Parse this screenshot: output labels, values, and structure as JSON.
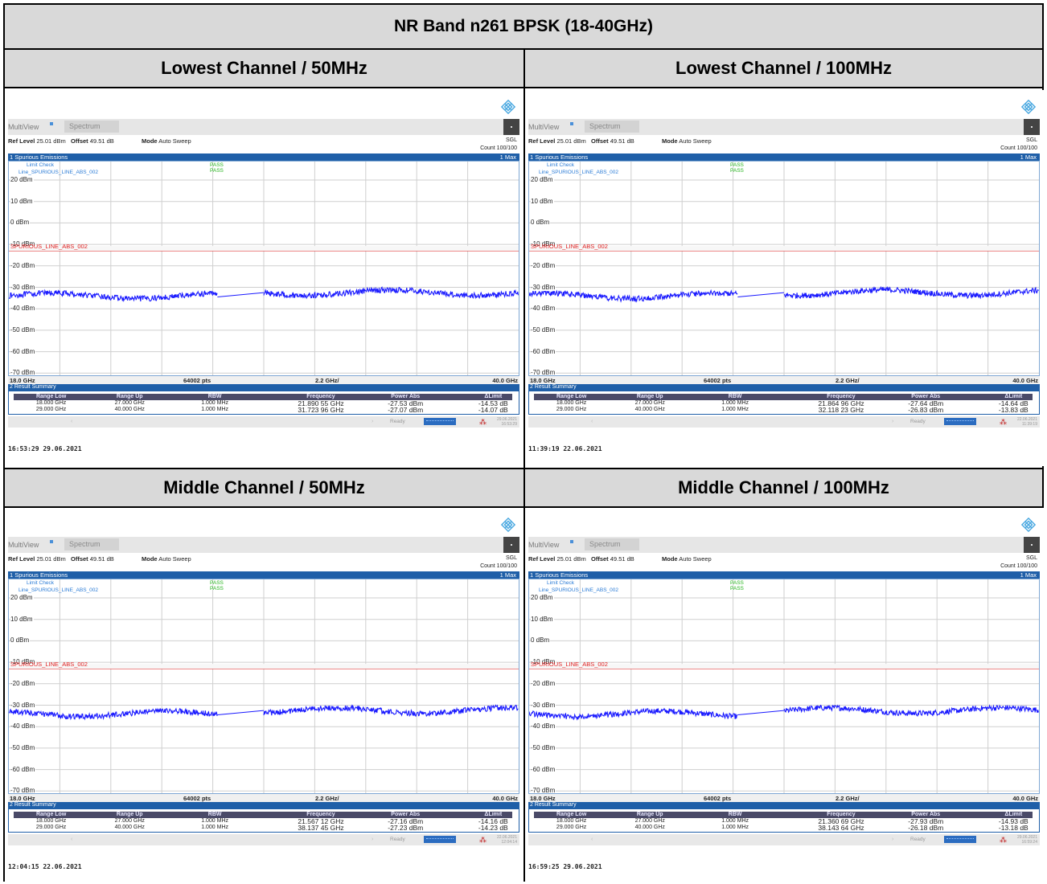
{
  "title": "NR Band n261 BPSK (18-40GHz)",
  "colors": {
    "trace": "#1a1aff",
    "limit": "#e02020",
    "header_bg": "#d9d9d9",
    "diagram_bar": "#1f5fa8"
  },
  "panels": [
    {
      "heading": "Lowest Channel / 50MHz",
      "tabs": {
        "multiview": "MultiView",
        "spectrum": "Spectrum"
      },
      "ref_level_label": "Ref Level",
      "ref_level": "25.01 dBm",
      "offset_label": "Offset",
      "offset": "49.51 dB",
      "mode_label": "Mode",
      "mode": "Auto Sweep",
      "sgl": "SGL",
      "count": "Count 100/100",
      "diagram_title": "1 Spurious Emissions",
      "trace_label": "1 Max",
      "limit_check": "Limit Check",
      "line_name": "Line_SPURIOUS_LINE_ABS_002",
      "pass1": "PASS",
      "pass2": "PASS",
      "limit_label": "SPURIOUS_LINE_ABS_002",
      "y_ticks": [
        "20 dBm",
        "10 dBm",
        "0 dBm",
        "-10 dBm",
        "-20 dBm",
        "-30 dBm",
        "-40 dBm",
        "-50 dBm",
        "-60 dBm",
        "-70 dBm"
      ],
      "x_start": "18.0 GHz",
      "points": "64002 pts",
      "span_div": "2.2 GHz/",
      "x_stop": "40.0 GHz",
      "result_title": "2 Result Summary",
      "columns": [
        "Range Low",
        "Range Up",
        "RBW",
        "Frequency",
        "Power Abs",
        "ΔLimit"
      ],
      "rows": [
        [
          "18.000 GHz",
          "27.000 GHz",
          "1.000 MHz",
          "21.890 55 GHz",
          "-27.53 dBm",
          "-14.53 dB"
        ],
        [
          "29.000 GHz",
          "40.000 GHz",
          "1.000 MHz",
          "31.723 96 GHz",
          "-27.07 dBm",
          "-14.07 dB"
        ]
      ],
      "status_ready": "Ready",
      "status_date": "29.06.2021",
      "status_time": "16:53:29",
      "timestamp": "16:53:29  29.06.2021"
    },
    {
      "heading": "Lowest Channel / 100MHz",
      "tabs": {
        "multiview": "MultiView",
        "spectrum": "Spectrum"
      },
      "ref_level_label": "Ref Level",
      "ref_level": "25.01 dBm",
      "offset_label": "Offset",
      "offset": "49.51 dB",
      "mode_label": "Mode",
      "mode": "Auto Sweep",
      "sgl": "SGL",
      "count": "Count 100/100",
      "diagram_title": "1 Spurious Emissions",
      "trace_label": "1 Max",
      "limit_check": "Limit Check",
      "line_name": "Line_SPURIOUS_LINE_ABS_002",
      "pass1": "PASS",
      "pass2": "PASS",
      "limit_label": "SPURIOUS_LINE_ABS_002",
      "y_ticks": [
        "20 dBm",
        "10 dBm",
        "0 dBm",
        "-10 dBm",
        "-20 dBm",
        "-30 dBm",
        "-40 dBm",
        "-50 dBm",
        "-60 dBm",
        "-70 dBm"
      ],
      "x_start": "18.0 GHz",
      "points": "64002 pts",
      "span_div": "2.2 GHz/",
      "x_stop": "40.0 GHz",
      "result_title": "2 Result Summary",
      "columns": [
        "Range Low",
        "Range Up",
        "RBW",
        "Frequency",
        "Power Abs",
        "ΔLimit"
      ],
      "rows": [
        [
          "18.000 GHz",
          "27.000 GHz",
          "1.000 MHz",
          "21.864 96 GHz",
          "-27.64 dBm",
          "-14.64 dB"
        ],
        [
          "29.000 GHz",
          "40.000 GHz",
          "1.000 MHz",
          "32.118 23 GHz",
          "-26.83 dBm",
          "-13.83 dB"
        ]
      ],
      "status_ready": "Ready",
      "status_date": "22.06.2021",
      "status_time": "11:39:19",
      "timestamp": "11:39:19  22.06.2021"
    },
    {
      "heading": "Middle Channel / 50MHz",
      "tabs": {
        "multiview": "MultiView",
        "spectrum": "Spectrum"
      },
      "ref_level_label": "Ref Level",
      "ref_level": "25.01 dBm",
      "offset_label": "Offset",
      "offset": "49.51 dB",
      "mode_label": "Mode",
      "mode": "Auto Sweep",
      "sgl": "SGL",
      "count": "Count 100/100",
      "diagram_title": "1 Spurious Emissions",
      "trace_label": "1 Max",
      "limit_check": "Limit Check",
      "line_name": "Line_SPURIOUS_LINE_ABS_002",
      "pass1": "PASS",
      "pass2": "PASS",
      "limit_label": "SPURIOUS_LINE_ABS_002",
      "y_ticks": [
        "20 dBm",
        "10 dBm",
        "0 dBm",
        "-10 dBm",
        "-20 dBm",
        "-30 dBm",
        "-40 dBm",
        "-50 dBm",
        "-60 dBm",
        "-70 dBm"
      ],
      "x_start": "18.0 GHz",
      "points": "64002 pts",
      "span_div": "2.2 GHz/",
      "x_stop": "40.0 GHz",
      "result_title": "2 Result Summary",
      "columns": [
        "Range Low",
        "Range Up",
        "RBW",
        "Frequency",
        "Power Abs",
        "ΔLimit"
      ],
      "rows": [
        [
          "18.000 GHz",
          "27.000 GHz",
          "1.000 MHz",
          "21.567 12 GHz",
          "-27.16 dBm",
          "-14.16 dB"
        ],
        [
          "29.000 GHz",
          "40.000 GHz",
          "1.000 MHz",
          "38.137 45 GHz",
          "-27.23 dBm",
          "-14.23 dB"
        ]
      ],
      "status_ready": "Ready",
      "status_date": "22.06.2021",
      "status_time": "12:04:14",
      "timestamp": "12:04:15  22.06.2021"
    },
    {
      "heading": "Middle Channel / 100MHz",
      "tabs": {
        "multiview": "MultiView",
        "spectrum": "Spectrum"
      },
      "ref_level_label": "Ref Level",
      "ref_level": "25.01 dBm",
      "offset_label": "Offset",
      "offset": "49.51 dB",
      "mode_label": "Mode",
      "mode": "Auto Sweep",
      "sgl": "SGL",
      "count": "Count 100/100",
      "diagram_title": "1 Spurious Emissions",
      "trace_label": "1 Max",
      "limit_check": "Limit Check",
      "line_name": "Line_SPURIOUS_LINE_ABS_002",
      "pass1": "PASS",
      "pass2": "PASS",
      "limit_label": "SPURIOUS_LINE_ABS_002",
      "y_ticks": [
        "20 dBm",
        "10 dBm",
        "0 dBm",
        "-10 dBm",
        "-20 dBm",
        "-30 dBm",
        "-40 dBm",
        "-50 dBm",
        "-60 dBm",
        "-70 dBm"
      ],
      "x_start": "18.0 GHz",
      "points": "64002 pts",
      "span_div": "2.2 GHz/",
      "x_stop": "40.0 GHz",
      "result_title": "2 Result Summary",
      "columns": [
        "Range Low",
        "Range Up",
        "RBW",
        "Frequency",
        "Power Abs",
        "ΔLimit"
      ],
      "rows": [
        [
          "18.000 GHz",
          "27.000 GHz",
          "1.000 MHz",
          "21.360 69 GHz",
          "-27.93 dBm",
          "-14.93 dB"
        ],
        [
          "29.000 GHz",
          "40.000 GHz",
          "1.000 MHz",
          "38.143 64 GHz",
          "-26.18 dBm",
          "-13.18 dB"
        ]
      ],
      "status_ready": "Ready",
      "status_date": "29.06.2021",
      "status_time": "16:59:24",
      "timestamp": "16:59:25  29.06.2021"
    }
  ]
}
